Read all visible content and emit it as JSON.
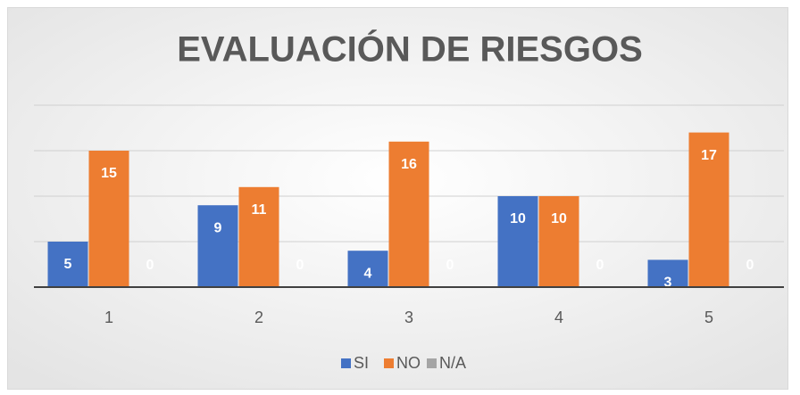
{
  "chart_data": {
    "type": "bar",
    "title": "EVALUACIÓN DE RIESGOS",
    "categories": [
      "1",
      "2",
      "3",
      "4",
      "5"
    ],
    "series": [
      {
        "name": "SI",
        "color": "#4472c4",
        "values": [
          5,
          9,
          4,
          10,
          3
        ]
      },
      {
        "name": "NO",
        "color": "#ed7d31",
        "values": [
          15,
          11,
          16,
          10,
          17
        ]
      },
      {
        "name": "N/A",
        "color": "#a5a5a5",
        "values": [
          0,
          0,
          0,
          0,
          0
        ]
      }
    ],
    "ylim": [
      0,
      20
    ],
    "yticks": [
      0,
      5,
      10,
      15,
      20
    ],
    "grid": true,
    "legend": "bottom"
  }
}
